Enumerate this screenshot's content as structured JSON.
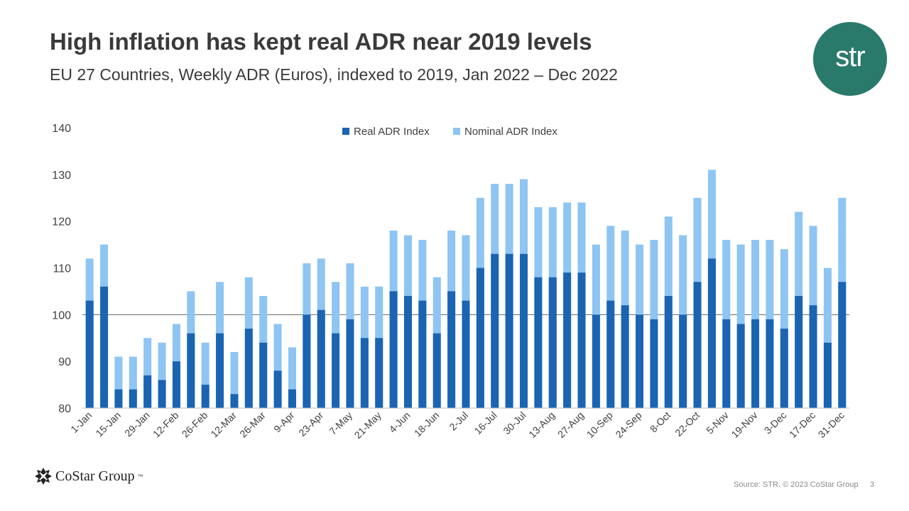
{
  "title": "High inflation has kept real ADR near 2019 levels",
  "subtitle": "EU 27 Countries, Weekly ADR (Euros), indexed to 2019, Jan 2022 – Dec 2022",
  "logo_text": "str",
  "brand_text": "CoStar Group",
  "brand_tm": "™",
  "source": "Source: STR. © 2023 CoStar Group",
  "page_number": "3",
  "colors": {
    "real": "#1a64b2",
    "nominal": "#8ec5f2",
    "brand_teal": "#2a7a6c"
  },
  "chart_data": {
    "type": "bar",
    "stacked_overlay": true,
    "title": "",
    "xlabel": "",
    "ylabel": "",
    "ylim": [
      80,
      140
    ],
    "yticks": [
      80,
      90,
      100,
      110,
      120,
      130,
      140
    ],
    "reference_line": 100,
    "grid": false,
    "legend": "top-center",
    "categories": [
      "1-Jan",
      "8-Jan",
      "15-Jan",
      "22-Jan",
      "29-Jan",
      "5-Feb",
      "12-Feb",
      "19-Feb",
      "26-Feb",
      "5-Mar",
      "12-Mar",
      "19-Mar",
      "26-Mar",
      "2-Apr",
      "9-Apr",
      "16-Apr",
      "23-Apr",
      "30-Apr",
      "7-May",
      "14-May",
      "21-May",
      "28-May",
      "4-Jun",
      "11-Jun",
      "18-Jun",
      "25-Jun",
      "2-Jul",
      "9-Jul",
      "16-Jul",
      "23-Jul",
      "30-Jul",
      "6-Aug",
      "13-Aug",
      "20-Aug",
      "27-Aug",
      "3-Sep",
      "10-Sep",
      "17-Sep",
      "24-Sep",
      "1-Oct",
      "8-Oct",
      "15-Oct",
      "22-Oct",
      "29-Oct",
      "5-Nov",
      "12-Nov",
      "19-Nov",
      "26-Nov",
      "3-Dec",
      "10-Dec",
      "17-Dec",
      "24-Dec",
      "31-Dec"
    ],
    "tick_labels": [
      "1-Jan",
      "15-Jan",
      "29-Jan",
      "12-Feb",
      "26-Feb",
      "12-Mar",
      "26-Mar",
      "9-Apr",
      "23-Apr",
      "7-May",
      "21-May",
      "4-Jun",
      "18-Jun",
      "2-Jul",
      "16-Jul",
      "30-Jul",
      "13-Aug",
      "27-Aug",
      "10-Sep",
      "24-Sep",
      "8-Oct",
      "22-Oct",
      "5-Nov",
      "19-Nov",
      "3-Dec",
      "17-Dec",
      "31-Dec"
    ],
    "series": [
      {
        "name": "Real ADR Index",
        "values": [
          103,
          106,
          84,
          84,
          87,
          86,
          90,
          96,
          85,
          96,
          83,
          97,
          94,
          88,
          84,
          100,
          101,
          96,
          99,
          95,
          95,
          105,
          104,
          103,
          96,
          105,
          103,
          110,
          113,
          113,
          113,
          108,
          108,
          109,
          109,
          100,
          103,
          102,
          100,
          99,
          104,
          100,
          107,
          112,
          99,
          98,
          99,
          99,
          97,
          104,
          102,
          94,
          107
        ]
      },
      {
        "name": "Nominal ADR Index",
        "values": [
          112,
          115,
          91,
          91,
          95,
          94,
          98,
          105,
          94,
          107,
          92,
          108,
          104,
          98,
          93,
          111,
          112,
          107,
          111,
          106,
          106,
          118,
          117,
          116,
          108,
          118,
          117,
          125,
          128,
          128,
          129,
          123,
          123,
          124,
          124,
          115,
          119,
          118,
          115,
          116,
          121,
          117,
          125,
          131,
          116,
          115,
          116,
          116,
          114,
          122,
          119,
          110,
          125
        ]
      }
    ]
  }
}
